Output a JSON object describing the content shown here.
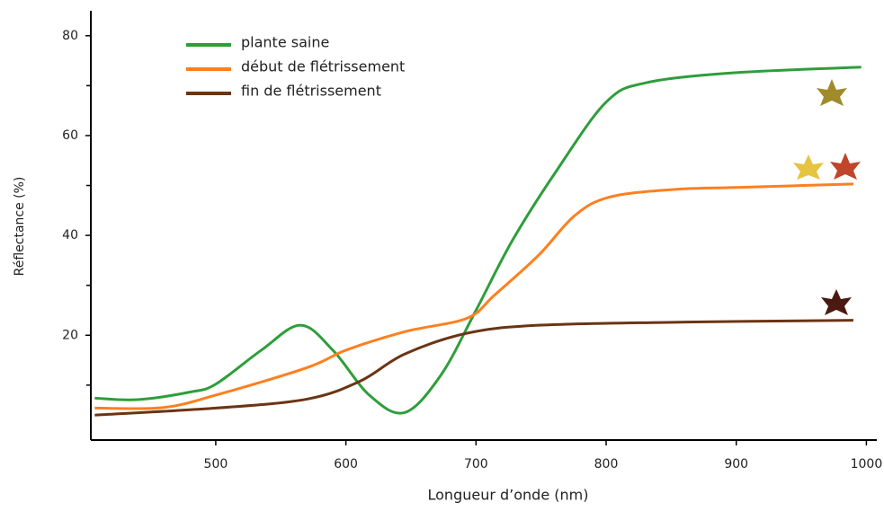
{
  "chart_data": {
    "type": "line",
    "x_label": "Longueur d’onde (nm)",
    "y_label": "Réflectance (%)",
    "xlim": [
      404,
      1008
    ],
    "ylim": [
      -1,
      85
    ],
    "xticks": [
      500,
      600,
      700,
      800,
      900,
      1000
    ],
    "yticks": [
      20,
      40,
      60,
      80
    ],
    "yminorticks": [
      10,
      30,
      50,
      70
    ],
    "legend": "upper-left",
    "series": [
      {
        "name": "plante saine",
        "color": "#2e9e3a",
        "x": [
          407,
          440,
          480,
          500,
          535,
          565,
          590,
          618,
          645,
          673,
          700,
          728,
          762,
          800,
          831,
          900,
          996
        ],
        "values": [
          7.4,
          7.1,
          8.6,
          10.2,
          17,
          22,
          17,
          8,
          4.5,
          12,
          25,
          39,
          53,
          66.7,
          70.6,
          72.6,
          73.7
        ]
      },
      {
        "name": "début de flétrissement",
        "color": "#ff7f1e",
        "x": [
          407,
          459,
          500,
          570,
          600,
          645,
          693,
          714,
          748,
          776,
          803,
          852,
          900,
          990
        ],
        "values": [
          5.4,
          5.5,
          8,
          13.5,
          17,
          20.7,
          23.4,
          28,
          36,
          44,
          47.7,
          49.2,
          49.6,
          50.3
        ]
      },
      {
        "name": "fin de flétrissement",
        "color": "#6b3414",
        "x": [
          407,
          500,
          570,
          611,
          645,
          693,
          748,
          852,
          990
        ],
        "values": [
          4,
          5.4,
          7.2,
          10.8,
          16.2,
          20.4,
          22,
          22.6,
          23
        ]
      }
    ]
  }
}
